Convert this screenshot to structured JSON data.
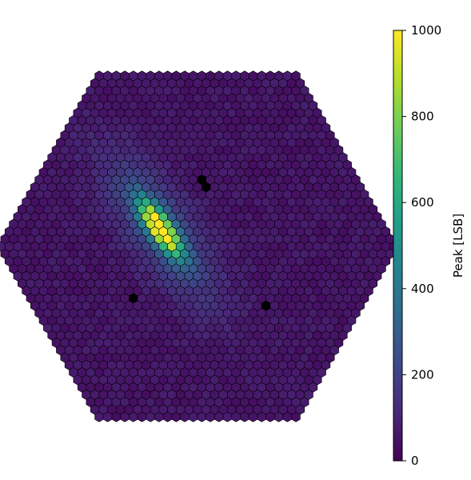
{
  "chart_data": {
    "type": "heatmap",
    "layout": "hexagonal camera",
    "colormap": "viridis",
    "value_range": [
      0,
      1000
    ],
    "background_level": 60,
    "hotspot": {
      "center": {
        "x": -46,
        "y": 22
      },
      "peak": 1000,
      "major_axis_deg": 125,
      "sigma_major": 28,
      "sigma_minor": 9,
      "halo_peak": 220,
      "halo_sigma_major": 75,
      "halo_sigma_minor": 28
    },
    "dead_pixels": [
      {
        "x": 10,
        "y": 80
      },
      {
        "x": -82,
        "y": -65
      },
      {
        "x": 88,
        "y": -74
      }
    ],
    "colorbar": {
      "label": "Peak [LSB]",
      "ticks": [
        0,
        200,
        400,
        600,
        800,
        1000
      ]
    }
  },
  "colors": {
    "viridis": [
      "#440154",
      "#482878",
      "#3e4989",
      "#31688e",
      "#26828e",
      "#1f9e89",
      "#35b779",
      "#6ece58",
      "#b5de2b",
      "#fde725"
    ],
    "edge": "#000000",
    "dead": "#000000"
  }
}
